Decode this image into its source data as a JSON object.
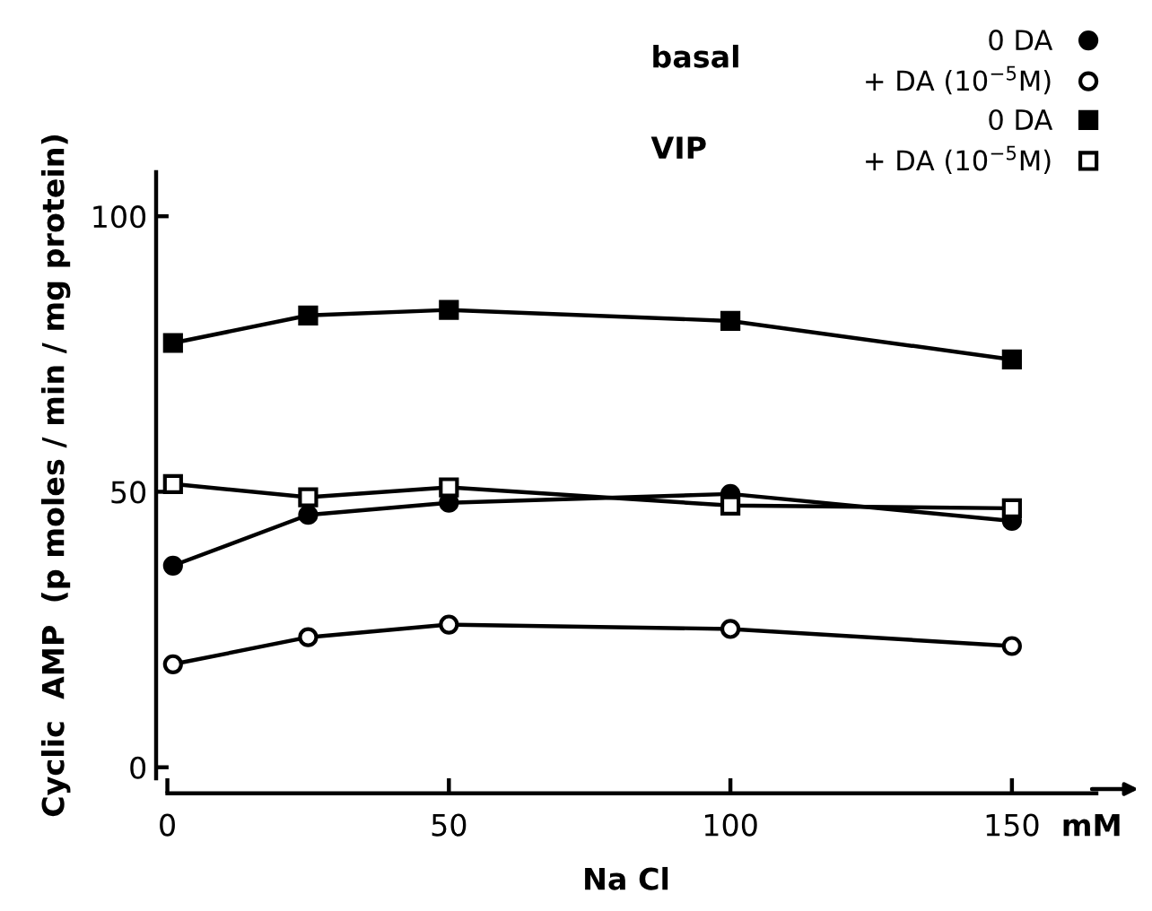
{
  "chart_data": {
    "type": "line",
    "xlabel": "Na Cl",
    "ylabel": "Cyclic  AMP  (p moles / min / mg protein)",
    "x": [
      1,
      25,
      50,
      100,
      150
    ],
    "series": [
      {
        "name": "0 DA",
        "color": "#000000",
        "marker": "circle",
        "values": [
          36.6,
          45.8,
          48,
          49.6,
          44.7
        ]
      },
      {
        "name": "+ DA (10$^{−5}$M)",
        "color": "#ffffff",
        "marker": "circle",
        "values": [
          18.7,
          23.6,
          25.9,
          25.1,
          22
        ]
      },
      {
        "name": "0 DA",
        "color": "#000000",
        "marker": "square",
        "values": [
          77,
          82,
          83,
          81,
          74
        ]
      },
      {
        "name": "+ DA (10$^{−5}$M)",
        "color": "#ffffff",
        "marker": "square",
        "values": [
          51.4,
          49,
          50.8,
          47.5,
          47
        ]
      }
    ],
    "annotations": [
      "basal",
      "VIP",
      "mM"
    ],
    "xlim": [
      -2,
      165
    ],
    "ylim": [
      -2,
      108
    ],
    "xticks": [
      0,
      50,
      100,
      150
    ],
    "yticks": [
      0,
      50,
      100
    ],
    "grid": false,
    "legend": "top right",
    "line_style": "solid"
  }
}
